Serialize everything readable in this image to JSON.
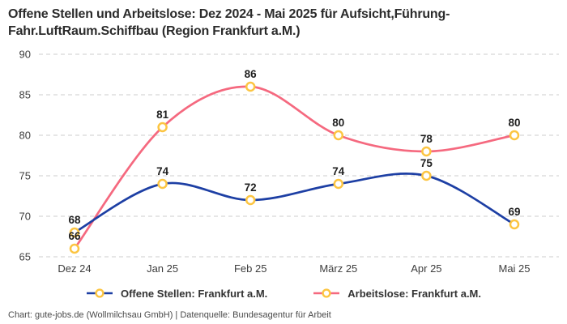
{
  "title": {
    "line1": "Offene Stellen und Arbeitslose: Dez 2024 - Mai 2025 für Aufsicht,Führung-",
    "line2": "Fahr.LuftRaum.Schiffbau (Region Frankfurt a.M.)"
  },
  "chart_data": {
    "type": "line",
    "title": "Offene Stellen und Arbeitslose: Dez 2024 - Mai 2025 für Aufsicht,Führung-Fahr.LuftRaum.Schiffbau (Region Frankfurt a.M.)",
    "categories": [
      "Dez 24",
      "Jan 25",
      "Feb 25",
      "März 25",
      "Apr 25",
      "Mai 25"
    ],
    "series": [
      {
        "name": "Offene Stellen: Frankfurt a.M.",
        "values": [
          68,
          74,
          72,
          74,
          75,
          69
        ],
        "color": "#1d3fa4"
      },
      {
        "name": "Arbeitslose: Frankfurt a.M.",
        "values": [
          66,
          81,
          86,
          80,
          78,
          80
        ],
        "color": "#f5697f"
      }
    ],
    "marker_color": "#fcc542",
    "marker_fill": "#ffffff",
    "label_color": "#1f1f1f",
    "axis_color": "#3d3d3d",
    "grid_color": "#cccccc",
    "ylim": [
      65,
      90
    ],
    "yticks": [
      65,
      70,
      75,
      80,
      85,
      90
    ],
    "grid": "horizontal-dashed",
    "legend_position": "bottom",
    "xlabel": "",
    "ylabel": ""
  },
  "footer": {
    "text": "Chart: gute-jobs.de (Wollmilchsau GmbH) | Datenquelle: Bundesagentur für Arbeit"
  }
}
